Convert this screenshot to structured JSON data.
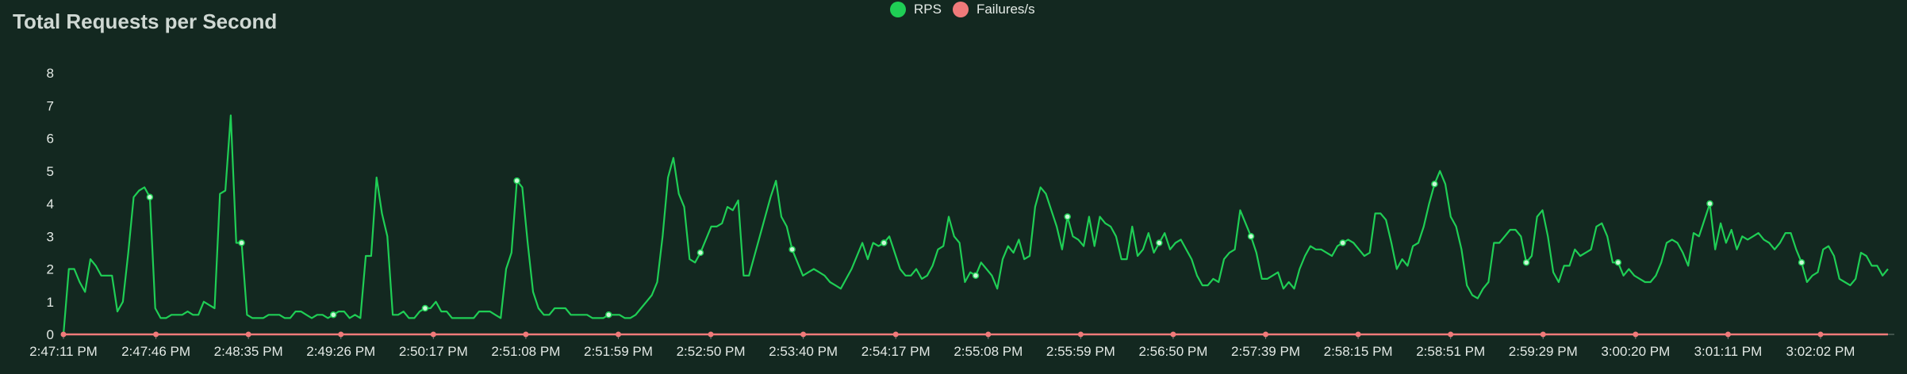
{
  "colors": {
    "background": "#132820",
    "rps": "#1fce55",
    "failures": "#f07a7a"
  },
  "chart_data": {
    "type": "line",
    "title": "Total Requests per Second",
    "legend_position": "top-center",
    "grid": false,
    "ylim": [
      0,
      8
    ],
    "yticks": [
      "0",
      "1",
      "2",
      "3",
      "4",
      "5",
      "6",
      "7",
      "8"
    ],
    "xticks": [
      "2:47:11 PM",
      "2:47:46 PM",
      "2:48:35 PM",
      "2:49:26 PM",
      "2:50:17 PM",
      "2:51:08 PM",
      "2:51:59 PM",
      "2:52:50 PM",
      "2:53:40 PM",
      "2:54:17 PM",
      "2:55:08 PM",
      "2:55:59 PM",
      "2:56:50 PM",
      "2:57:39 PM",
      "2:58:15 PM",
      "2:58:51 PM",
      "2:59:29 PM",
      "3:00:20 PM",
      "3:01:11 PM",
      "3:02:02 PM"
    ],
    "series": [
      {
        "name": "RPS",
        "color": "#1fce55",
        "values": [
          0,
          2.0,
          2.0,
          1.6,
          1.3,
          2.3,
          2.1,
          1.8,
          1.8,
          1.8,
          0.7,
          1.0,
          2.5,
          4.2,
          4.4,
          4.5,
          4.2,
          0.8,
          0.5,
          0.5,
          0.6,
          0.6,
          0.6,
          0.7,
          0.6,
          0.6,
          1.0,
          0.9,
          0.8,
          4.3,
          4.4,
          6.7,
          2.8,
          2.8,
          0.6,
          0.5,
          0.5,
          0.5,
          0.6,
          0.6,
          0.6,
          0.5,
          0.5,
          0.7,
          0.7,
          0.6,
          0.5,
          0.6,
          0.6,
          0.5,
          0.6,
          0.7,
          0.7,
          0.5,
          0.6,
          0.5,
          2.4,
          2.4,
          4.8,
          3.7,
          3.0,
          0.6,
          0.6,
          0.7,
          0.5,
          0.5,
          0.7,
          0.8,
          0.8,
          1.0,
          0.7,
          0.7,
          0.5,
          0.5,
          0.5,
          0.5,
          0.5,
          0.7,
          0.7,
          0.7,
          0.6,
          0.5,
          2.0,
          2.5,
          4.7,
          4.5,
          2.8,
          1.3,
          0.8,
          0.6,
          0.6,
          0.8,
          0.8,
          0.8,
          0.6,
          0.6,
          0.6,
          0.6,
          0.5,
          0.5,
          0.5,
          0.6,
          0.6,
          0.6,
          0.5,
          0.5,
          0.6,
          0.8,
          1.0,
          1.2,
          1.6,
          3.0,
          4.8,
          5.4,
          4.3,
          3.9,
          2.3,
          2.2,
          2.5,
          2.9,
          3.3,
          3.3,
          3.4,
          3.9,
          3.8,
          4.1,
          1.8,
          1.8,
          2.4,
          3.0,
          3.6,
          4.2,
          4.7,
          3.6,
          3.3,
          2.6,
          2.2,
          1.8,
          1.9,
          2.0,
          1.9,
          1.8,
          1.6,
          1.5,
          1.4,
          1.7,
          2.0,
          2.4,
          2.8,
          2.3,
          2.8,
          2.7,
          2.8,
          3.0,
          2.5,
          2.0,
          1.8,
          1.8,
          2.0,
          1.7,
          1.8,
          2.1,
          2.6,
          2.7,
          3.6,
          3.0,
          2.8,
          1.6,
          1.9,
          1.8,
          2.2,
          2.0,
          1.8,
          1.4,
          2.3,
          2.7,
          2.5,
          2.9,
          2.3,
          2.4,
          3.9,
          4.5,
          4.3,
          3.8,
          3.3,
          2.6,
          3.6,
          3.0,
          2.9,
          2.7,
          3.6,
          2.7,
          3.6,
          3.4,
          3.3,
          3.0,
          2.3,
          2.3,
          3.3,
          2.4,
          2.6,
          3.1,
          2.5,
          2.8,
          3.1,
          2.6,
          2.8,
          2.9,
          2.6,
          2.3,
          1.8,
          1.5,
          1.5,
          1.7,
          1.6,
          2.3,
          2.5,
          2.6,
          3.8,
          3.4,
          3.0,
          2.5,
          1.7,
          1.7,
          1.8,
          1.9,
          1.4,
          1.6,
          1.4,
          2.0,
          2.4,
          2.7,
          2.6,
          2.6,
          2.5,
          2.4,
          2.7,
          2.8,
          2.9,
          2.8,
          2.6,
          2.4,
          2.5,
          3.7,
          3.7,
          3.5,
          2.8,
          2.0,
          2.3,
          2.1,
          2.7,
          2.8,
          3.3,
          4.0,
          4.6,
          5.0,
          4.6,
          3.6,
          3.3,
          2.6,
          1.5,
          1.2,
          1.1,
          1.4,
          1.6,
          2.8,
          2.8,
          3.0,
          3.2,
          3.2,
          3.0,
          2.2,
          2.4,
          3.6,
          3.8,
          3.0,
          1.9,
          1.6,
          2.1,
          2.1,
          2.6,
          2.4,
          2.5,
          2.6,
          3.3,
          3.4,
          3.0,
          2.2,
          2.2,
          1.8,
          2.0,
          1.8,
          1.7,
          1.6,
          1.6,
          1.8,
          2.2,
          2.8,
          2.9,
          2.8,
          2.5,
          2.1,
          3.1,
          3.0,
          3.5,
          4.0,
          2.6,
          3.4,
          2.8,
          3.2,
          2.6,
          3.0,
          2.9,
          3.0,
          3.1,
          2.9,
          2.8,
          2.6,
          2.8,
          3.1,
          3.1,
          2.6,
          2.2,
          1.6,
          1.8,
          1.9,
          2.6,
          2.7,
          2.4,
          1.7,
          1.6,
          1.5,
          1.7,
          2.5,
          2.4,
          2.1,
          2.1,
          1.8,
          2.0
        ]
      },
      {
        "name": "Failures/s",
        "color": "#f07a7a",
        "values": [
          0,
          0
        ]
      }
    ]
  }
}
